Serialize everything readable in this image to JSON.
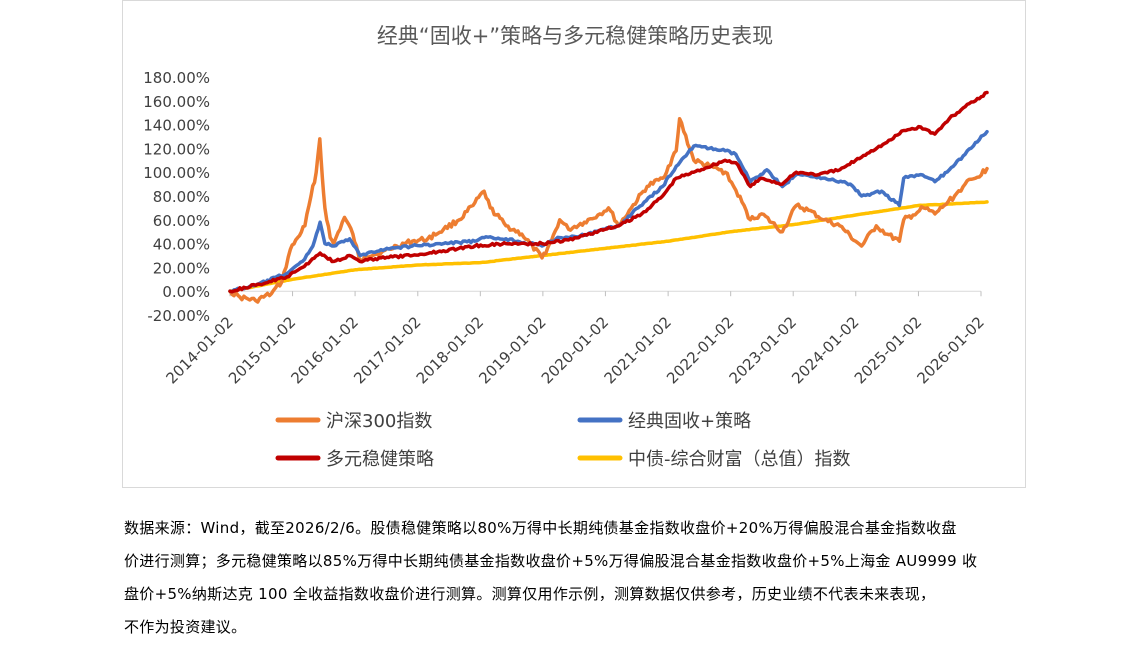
{
  "chart_data": {
    "type": "line",
    "title": "经典“固收+”策略与多元稳健策略历史表现",
    "xlabel": "",
    "ylabel": "",
    "ylim": [
      -20,
      180
    ],
    "yticks": [
      "180.00%",
      "160.00%",
      "140.00%",
      "120.00%",
      "100.00%",
      "80.00%",
      "60.00%",
      "40.00%",
      "20.00%",
      "0.00%",
      "-20.00%"
    ],
    "xticks": [
      "2014-01-02",
      "2015-01-02",
      "2016-01-02",
      "2017-01-02",
      "2018-01-02",
      "2019-01-02",
      "2020-01-02",
      "2021-01-02",
      "2022-01-02",
      "2023-01-02",
      "2024-01-02",
      "2025-01-02",
      "2026-01-02"
    ],
    "legend_position": "bottom",
    "grid": false,
    "series": [
      {
        "name": "沪深300指数",
        "color": "#ED7D31",
        "x": [
          "2014-01-02",
          "2014-03-01",
          "2014-06-01",
          "2014-09-01",
          "2014-11-01",
          "2014-12-20",
          "2015-02-01",
          "2015-03-15",
          "2015-04-20",
          "2015-05-20",
          "2015-06-10",
          "2015-06-25",
          "2015-07-10",
          "2015-08-10",
          "2015-08-30",
          "2015-11-01",
          "2015-12-20",
          "2016-01-30",
          "2016-03-01",
          "2016-06-01",
          "2016-09-01",
          "2016-12-01",
          "2017-03-01",
          "2017-06-01",
          "2017-09-01",
          "2017-11-20",
          "2018-01-24",
          "2018-03-01",
          "2018-06-01",
          "2018-09-01",
          "2018-12-28",
          "2019-02-20",
          "2019-04-10",
          "2019-06-01",
          "2019-09-01",
          "2019-12-01",
          "2020-01-20",
          "2020-03-20",
          "2020-06-01",
          "2020-09-01",
          "2020-12-01",
          "2021-02-18",
          "2021-03-10",
          "2021-06-01",
          "2021-09-01",
          "2021-12-01",
          "2022-02-01",
          "2022-04-27",
          "2022-07-01",
          "2022-10-31",
          "2023-01-20",
          "2023-04-01",
          "2023-07-01",
          "2023-10-01",
          "2024-01-01",
          "2024-02-05",
          "2024-05-01",
          "2024-07-01",
          "2024-09-13",
          "2024-10-08",
          "2024-12-01",
          "2025-02-01",
          "2025-04-08",
          "2025-06-01",
          "2025-08-01",
          "2025-10-01",
          "2025-12-01",
          "2026-02-06"
        ],
        "values": [
          0,
          -5,
          -8,
          -2,
          8,
          35,
          45,
          55,
          80,
          100,
          128,
          95,
          70,
          45,
          40,
          62,
          48,
          25,
          30,
          32,
          38,
          42,
          44,
          52,
          60,
          72,
          84,
          70,
          55,
          48,
          28,
          42,
          60,
          52,
          58,
          65,
          70,
          55,
          70,
          88,
          95,
          118,
          145,
          110,
          105,
          100,
          85,
          60,
          65,
          50,
          72,
          68,
          60,
          55,
          42,
          38,
          55,
          48,
          42,
          60,
          64,
          70,
          65,
          72,
          80,
          90,
          95,
          103
        ]
      },
      {
        "name": "经典固收+策略",
        "color": "#4472C4",
        "x": [
          "2014-01-02",
          "2014-06-01",
          "2014-12-01",
          "2015-03-01",
          "2015-05-01",
          "2015-06-12",
          "2015-07-10",
          "2015-09-01",
          "2015-12-01",
          "2016-01-30",
          "2016-06-01",
          "2016-12-01",
          "2017-06-01",
          "2017-12-01",
          "2018-01-24",
          "2018-06-01",
          "2018-12-28",
          "2019-04-10",
          "2019-09-01",
          "2019-12-31",
          "2020-03-20",
          "2020-07-10",
          "2020-12-01",
          "2021-02-18",
          "2021-06-01",
          "2021-12-01",
          "2022-02-01",
          "2022-04-27",
          "2022-08-01",
          "2022-10-31",
          "2023-01-20",
          "2023-06-01",
          "2023-12-01",
          "2024-02-05",
          "2024-06-01",
          "2024-09-13",
          "2024-10-08",
          "2025-01-15",
          "2025-04-08",
          "2025-07-01",
          "2025-10-01",
          "2025-12-01",
          "2026-02-06"
        ],
        "values": [
          0,
          5,
          15,
          25,
          38,
          58,
          40,
          38,
          44,
          30,
          35,
          38,
          40,
          42,
          45,
          44,
          38,
          45,
          47,
          52,
          55,
          70,
          88,
          105,
          122,
          118,
          115,
          92,
          102,
          88,
          98,
          96,
          90,
          80,
          84,
          72,
          95,
          98,
          92,
          102,
          115,
          125,
          134
        ]
      },
      {
        "name": "多元稳健策略",
        "color": "#C00000",
        "x": [
          "2014-01-02",
          "2014-06-01",
          "2014-12-01",
          "2015-03-01",
          "2015-06-12",
          "2015-09-01",
          "2015-12-01",
          "2016-01-30",
          "2016-06-01",
          "2016-12-01",
          "2017-06-01",
          "2017-12-01",
          "2018-06-01",
          "2018-12-28",
          "2019-06-01",
          "2019-12-31",
          "2020-03-20",
          "2020-08-01",
          "2020-12-01",
          "2021-02-18",
          "2021-06-01",
          "2021-12-01",
          "2022-02-01",
          "2022-04-27",
          "2022-07-01",
          "2022-10-31",
          "2023-01-20",
          "2023-06-01",
          "2023-10-01",
          "2024-01-01",
          "2024-04-01",
          "2024-07-01",
          "2024-10-08",
          "2025-01-15",
          "2025-04-08",
          "2025-07-01",
          "2025-10-01",
          "2025-12-01",
          "2026-02-06"
        ],
        "values": [
          0,
          5,
          12,
          20,
          32,
          25,
          30,
          25,
          28,
          30,
          34,
          38,
          40,
          40,
          43,
          52,
          55,
          65,
          80,
          95,
          100,
          110,
          108,
          88,
          95,
          90,
          100,
          98,
          102,
          110,
          118,
          125,
          135,
          138,
          132,
          145,
          155,
          160,
          167
        ]
      },
      {
        "name": "中债-综合财富（总值）指数",
        "color": "#FFC000",
        "x": [
          "2014-01-02",
          "2015-01-02",
          "2016-01-02",
          "2017-01-02",
          "2018-01-02",
          "2019-01-02",
          "2020-01-02",
          "2021-01-02",
          "2022-01-02",
          "2023-01-02",
          "2024-01-02",
          "2025-01-02",
          "2025-06-01",
          "2026-02-06"
        ],
        "values": [
          0,
          10,
          18,
          22,
          24,
          30,
          36,
          42,
          50,
          56,
          64,
          72,
          73,
          75
        ]
      }
    ]
  },
  "note": {
    "line1": "数据来源：Wind，截至2026/2/6。股债稳健策略以80%万得中长期纯债基金指数收盘价+20%万得偏股混合基金指数收盘",
    "line2": "价进行测算；多元稳健策略以85%万得中长期纯债基金指数收盘价+5%万得偏股混合基金指数收盘价+5%上海金 AU9999 收",
    "line3": "盘价+5%纳斯达克 100 全收益指数收盘价进行测算。测算仅用作示例，测算数据仅供参考，历史业绩不代表未来表现，",
    "line4": "不作为投资建议。"
  }
}
